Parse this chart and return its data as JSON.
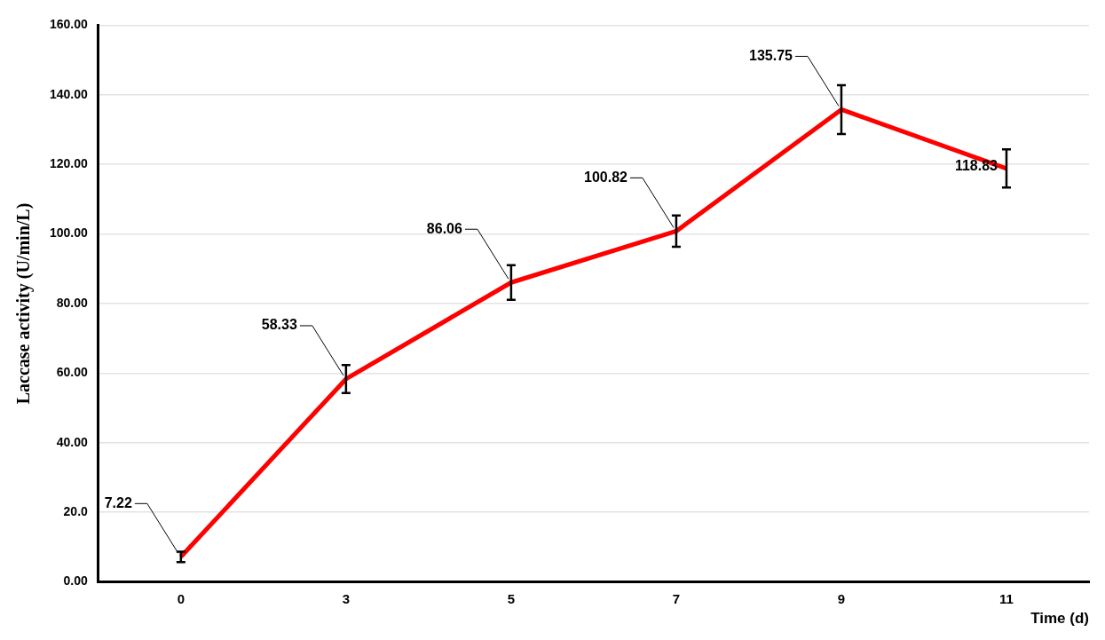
{
  "chart_data": {
    "type": "line",
    "xlabel": "Time (d)",
    "ylabel": "Laccase activity (U/min/L)",
    "categories": [
      "0",
      "3",
      "5",
      "7",
      "9",
      "11"
    ],
    "series": [
      {
        "color": "#ff0000",
        "values": [
          7.22,
          58.33,
          86.06,
          100.82,
          135.75,
          118.83
        ],
        "errors": [
          1.5,
          4,
          5,
          4.5,
          7,
          5.5
        ]
      }
    ],
    "ylim": [
      0,
      160
    ],
    "yticks": [
      {
        "value": 0,
        "label": "0.00"
      },
      {
        "value": 20,
        "label": "20.0"
      },
      {
        "value": 40,
        "label": "40.00"
      },
      {
        "value": 60,
        "label": "60.00"
      },
      {
        "value": 80,
        "label": "80.00"
      },
      {
        "value": 100,
        "label": "100.00"
      },
      {
        "value": 120,
        "label": "120.00"
      },
      {
        "value": 140,
        "label": "140.00"
      },
      {
        "value": 160,
        "label": "160.00"
      }
    ],
    "annotations": [
      {
        "text": "7.22",
        "x": "0",
        "y": 7.22
      },
      {
        "text": "58.33",
        "x": "3",
        "y": 58.33
      },
      {
        "text": "86.06",
        "x": "5",
        "y": 86.06
      },
      {
        "text": "100.82",
        "x": "7",
        "y": 100.82
      },
      {
        "text": "135.75",
        "x": "9",
        "y": 135.75
      },
      {
        "text": "118.83",
        "x": "11",
        "y": 118.83
      }
    ],
    "grid": "y",
    "legend": false,
    "marker": "none",
    "line_style": "solid"
  }
}
